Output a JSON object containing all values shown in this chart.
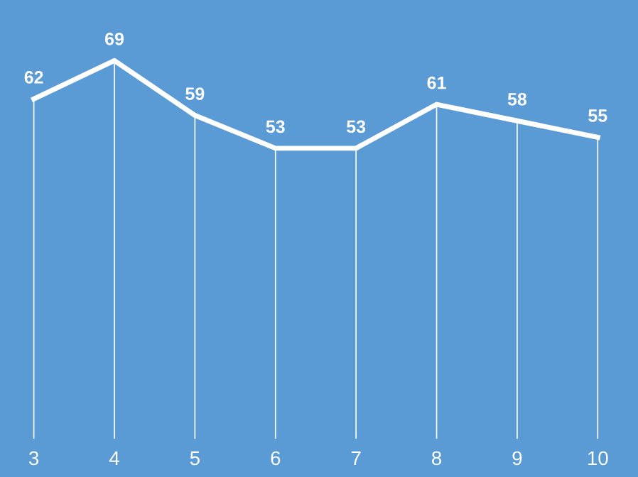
{
  "chart_data": {
    "type": "line",
    "categories": [
      "3",
      "4",
      "5",
      "6",
      "7",
      "8",
      "9",
      "10"
    ],
    "series": [
      {
        "color": "#ffffff",
        "values": [
          62,
          69,
          59,
          53,
          53,
          61,
          58,
          55
        ]
      }
    ],
    "data_labels": true,
    "marker": "none",
    "line_style": "solid",
    "grid": "x",
    "tick_labels": "x"
  }
}
